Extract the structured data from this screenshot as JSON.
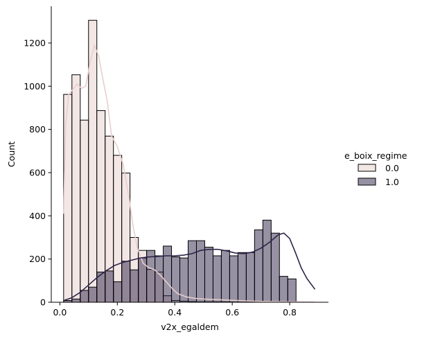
{
  "chart_data": {
    "type": "bar",
    "xlabel": "v2x_egaldem",
    "ylabel": "Count",
    "xlim": [
      -0.03,
      0.935
    ],
    "ylim": [
      0,
      1370
    ],
    "xticks": [
      0.0,
      0.2,
      0.4,
      0.6,
      0.8
    ],
    "xtick_labels": [
      "0.0",
      "0.2",
      "0.4",
      "0.6",
      "0.8"
    ],
    "yticks": [
      0,
      200,
      400,
      600,
      800,
      1000,
      1200
    ],
    "ytick_labels": [
      "0",
      "200",
      "400",
      "600",
      "800",
      "1000",
      "1200"
    ],
    "bin_start": 0.013,
    "bin_width": 0.0289,
    "legend": {
      "title": "e_boix_regime",
      "placement": "right"
    },
    "grid": false,
    "series": [
      {
        "name": "0.0",
        "color": "#e8cfcd",
        "fill_opacity": 0.5,
        "kde_color": "#e8cfcd",
        "values": [
          962,
          1053,
          843,
          1305,
          887,
          769,
          680,
          598,
          300,
          240,
          152,
          140,
          30,
          8,
          5,
          3,
          2,
          2,
          2,
          2,
          1,
          1,
          1,
          1,
          1,
          1,
          1,
          0,
          0,
          0
        ],
        "kde": [
          [
            0.013,
            410
          ],
          [
            0.02,
            820
          ],
          [
            0.03,
            960
          ],
          [
            0.045,
            985
          ],
          [
            0.06,
            1010
          ],
          [
            0.075,
            990
          ],
          [
            0.09,
            1000
          ],
          [
            0.105,
            1110
          ],
          [
            0.12,
            1190
          ],
          [
            0.135,
            1140
          ],
          [
            0.15,
            1030
          ],
          [
            0.165,
            930
          ],
          [
            0.18,
            770
          ],
          [
            0.2,
            720
          ],
          [
            0.22,
            640
          ],
          [
            0.24,
            490
          ],
          [
            0.255,
            350
          ],
          [
            0.27,
            250
          ],
          [
            0.29,
            180
          ],
          [
            0.31,
            160
          ],
          [
            0.33,
            150
          ],
          [
            0.35,
            125
          ],
          [
            0.37,
            95
          ],
          [
            0.39,
            65
          ],
          [
            0.41,
            40
          ],
          [
            0.44,
            25
          ],
          [
            0.47,
            18
          ],
          [
            0.5,
            15
          ],
          [
            0.55,
            12
          ],
          [
            0.6,
            9
          ],
          [
            0.65,
            6
          ],
          [
            0.7,
            4
          ],
          [
            0.75,
            3
          ],
          [
            0.8,
            2
          ],
          [
            0.85,
            2
          ],
          [
            0.888,
            1
          ]
        ]
      },
      {
        "name": "1.0",
        "color": "#2d2448",
        "fill_opacity": 0.5,
        "kde_color": "#2d2448",
        "values": [
          8,
          15,
          55,
          70,
          140,
          145,
          95,
          190,
          150,
          205,
          240,
          215,
          260,
          210,
          205,
          285,
          285,
          255,
          215,
          240,
          215,
          230,
          230,
          335,
          380,
          320,
          120,
          108,
          0,
          0
        ],
        "kde": [
          [
            0.013,
            8
          ],
          [
            0.04,
            20
          ],
          [
            0.07,
            45
          ],
          [
            0.1,
            80
          ],
          [
            0.13,
            115
          ],
          [
            0.16,
            145
          ],
          [
            0.19,
            170
          ],
          [
            0.22,
            185
          ],
          [
            0.25,
            195
          ],
          [
            0.28,
            205
          ],
          [
            0.31,
            210
          ],
          [
            0.34,
            212
          ],
          [
            0.37,
            215
          ],
          [
            0.4,
            215
          ],
          [
            0.43,
            218
          ],
          [
            0.46,
            225
          ],
          [
            0.49,
            240
          ],
          [
            0.52,
            245
          ],
          [
            0.55,
            245
          ],
          [
            0.58,
            238
          ],
          [
            0.61,
            228
          ],
          [
            0.64,
            225
          ],
          [
            0.67,
            232
          ],
          [
            0.7,
            250
          ],
          [
            0.73,
            278
          ],
          [
            0.76,
            312
          ],
          [
            0.78,
            320
          ],
          [
            0.8,
            295
          ],
          [
            0.82,
            230
          ],
          [
            0.84,
            160
          ],
          [
            0.86,
            110
          ],
          [
            0.888,
            60
          ]
        ]
      }
    ]
  }
}
